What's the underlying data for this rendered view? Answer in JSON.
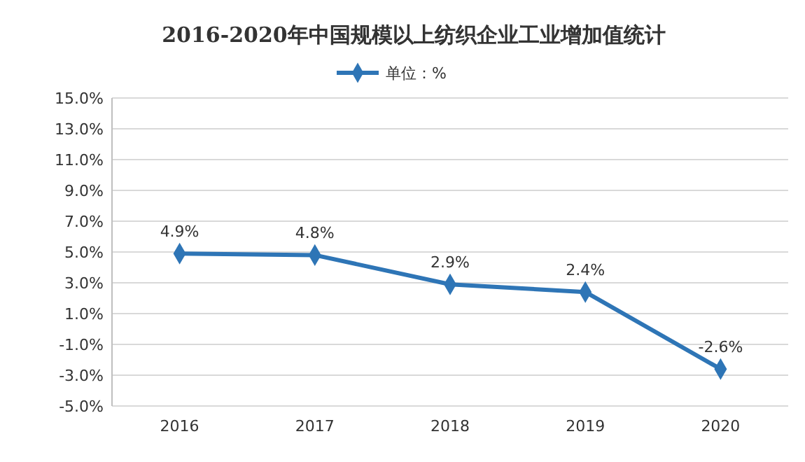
{
  "chart_data": {
    "type": "line",
    "title": "2016-2020年中国规模以上纺织企业工业增加值统计",
    "categories": [
      "2016",
      "2017",
      "2018",
      "2019",
      "2020"
    ],
    "series": [
      {
        "name": "单位：%",
        "color": "#2e75b6",
        "values": [
          4.9,
          4.8,
          2.9,
          2.4,
          -2.6
        ],
        "value_labels": [
          "4.9%",
          "4.8%",
          "2.9%",
          "2.4%",
          "-2.6%"
        ]
      }
    ],
    "ylim": [
      -5,
      15
    ],
    "yticks": [
      {
        "value": -5,
        "label": "-5.0%"
      },
      {
        "value": -3,
        "label": "-3.0%"
      },
      {
        "value": -1,
        "label": "-1.0%"
      },
      {
        "value": 1,
        "label": "1.0%"
      },
      {
        "value": 3,
        "label": "3.0%"
      },
      {
        "value": 5,
        "label": "5.0%"
      },
      {
        "value": 7,
        "label": "7.0%"
      },
      {
        "value": 9,
        "label": "9.0%"
      },
      {
        "value": 11,
        "label": "11.0%"
      },
      {
        "value": 13,
        "label": "13.0%"
      },
      {
        "value": 15,
        "label": "15.0%"
      }
    ],
    "grid": "y",
    "legend": "top",
    "marker": "diamond",
    "line_style": "solid"
  }
}
